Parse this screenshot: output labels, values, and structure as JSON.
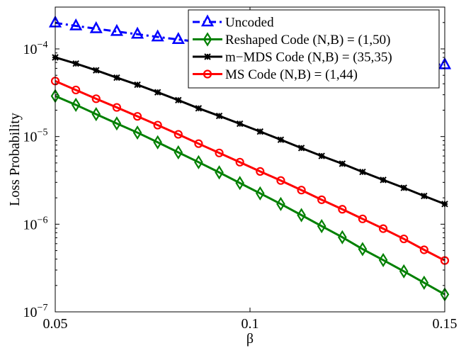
{
  "chart_data": {
    "type": "line",
    "xlabel": "β",
    "ylabel": "Loss Probability",
    "yscale": "log",
    "xlim": [
      0.05,
      0.15
    ],
    "ylim": [
      1e-07,
      0.0003
    ],
    "grid": false,
    "legend_position": "top-right",
    "x_ticks": [
      {
        "value": 0.05,
        "label": "0.05"
      },
      {
        "value": 0.1,
        "label": "0.1"
      },
      {
        "value": 0.15,
        "label": "0.15"
      }
    ],
    "y_ticks": [
      {
        "value": 1e-07,
        "base": "10",
        "exp": "−7"
      },
      {
        "value": 1e-06,
        "base": "10",
        "exp": "−6"
      },
      {
        "value": 1e-05,
        "base": "10",
        "exp": "−5"
      },
      {
        "value": 0.0001,
        "base": "10",
        "exp": "−4"
      }
    ],
    "x": [
      0.05,
      0.0553,
      0.0605,
      0.0658,
      0.0711,
      0.0763,
      0.0816,
      0.0868,
      0.0921,
      0.0974,
      0.1026,
      0.1079,
      0.1132,
      0.1184,
      0.1237,
      0.1289,
      0.1342,
      0.1395,
      0.1447,
      0.15
    ],
    "series": [
      {
        "name": "Uncoded",
        "color": "#0000ff",
        "marker": "triangle",
        "dash": "dashdot",
        "values": [
          0.000198,
          0.000183,
          0.00017,
          0.000158,
          0.000147,
          0.000137,
          0.000128,
          0.00012,
          0.000113,
          0.000106,
          0.0001,
          9.5e-05,
          9e-05,
          8.5e-05,
          8e-05,
          7.7e-05,
          7.3e-05,
          7e-05,
          6.7e-05,
          6.6e-05
        ]
      },
      {
        "name": "Reshaped Code (N,B) = (1,50)",
        "color": "#008000",
        "marker": "diamond",
        "dash": "solid",
        "values": [
          2.9e-05,
          2.3e-05,
          1.8e-05,
          1.41e-05,
          1.11e-05,
          8.6e-06,
          6.6e-06,
          5.1e-06,
          3.9e-06,
          2.95e-06,
          2.25e-06,
          1.7e-06,
          1.27e-06,
          9.5e-07,
          7.1e-07,
          5.2e-07,
          3.9e-07,
          2.9e-07,
          2.15e-07,
          1.58e-07
        ]
      },
      {
        "name": "m−MDS Code (N,B) = (35,35)",
        "color": "#000000",
        "marker": "star",
        "dash": "solid",
        "values": [
          8e-05,
          6.8e-05,
          5.7e-05,
          4.7e-05,
          3.9e-05,
          3.2e-05,
          2.6e-05,
          2.1e-05,
          1.72e-05,
          1.4e-05,
          1.14e-05,
          9.2e-06,
          7.4e-06,
          6e-06,
          4.9e-06,
          3.95e-06,
          3.2e-06,
          2.6e-06,
          2.1e-06,
          1.7e-06
        ]
      },
      {
        "name": "MS Code (N,B) = (1,44)",
        "color": "#ff0000",
        "marker": "circle",
        "dash": "solid",
        "values": [
          4.3e-05,
          3.4e-05,
          2.7e-05,
          2.15e-05,
          1.7e-05,
          1.35e-05,
          1.06e-05,
          8.3e-06,
          6.5e-06,
          5.1e-06,
          4e-06,
          3.15e-06,
          2.45e-06,
          1.9e-06,
          1.48e-06,
          1.15e-06,
          8.9e-07,
          6.8e-07,
          5.1e-07,
          3.85e-07
        ]
      }
    ]
  }
}
